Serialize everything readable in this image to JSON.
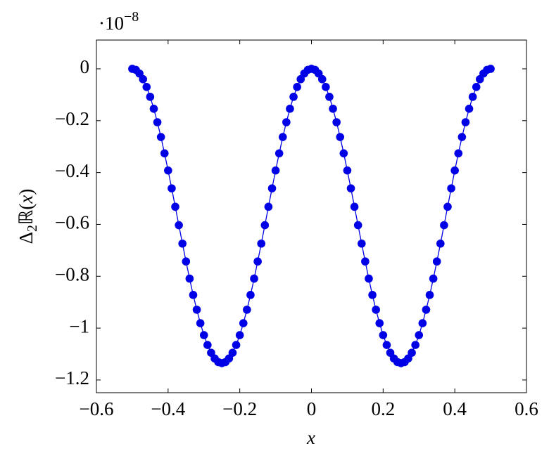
{
  "chart_data": {
    "type": "line",
    "y_multiplier": {
      "base": "·10",
      "exponent": "−8"
    },
    "xlabel": "x",
    "ylabel": [
      "Δ",
      "2",
      "ℝ(",
      "x",
      ")"
    ],
    "x": [
      -0.5,
      -0.49,
      -0.48,
      -0.47,
      -0.46,
      -0.45,
      -0.44,
      -0.43,
      -0.42,
      -0.41,
      -0.4,
      -0.39,
      -0.38,
      -0.37,
      -0.36,
      -0.35,
      -0.34,
      -0.33,
      -0.32,
      -0.31,
      -0.3,
      -0.29,
      -0.28,
      -0.27,
      -0.26,
      -0.25,
      -0.24,
      -0.23,
      -0.22,
      -0.21,
      -0.2,
      -0.19,
      -0.18,
      -0.17,
      -0.16,
      -0.15,
      -0.14,
      -0.13,
      -0.12,
      -0.11,
      -0.1,
      -0.09,
      -0.08,
      -0.07,
      -0.06,
      -0.05,
      -0.04,
      -0.03,
      -0.02,
      -0.01,
      0,
      0.01,
      0.02,
      0.03,
      0.04,
      0.05,
      0.06,
      0.07,
      0.08,
      0.09,
      0.1,
      0.11,
      0.12,
      0.13,
      0.14,
      0.15,
      0.16,
      0.17,
      0.18,
      0.19,
      0.2,
      0.21,
      0.22,
      0.23,
      0.24,
      0.25,
      0.26,
      0.27,
      0.28,
      0.29,
      0.3,
      0.31,
      0.32,
      0.33,
      0.34,
      0.35,
      0.36,
      0.37,
      0.38,
      0.39,
      0.4,
      0.41,
      0.42,
      0.43,
      0.44,
      0.45,
      0.46,
      0.47,
      0.48,
      0.49,
      0.5
    ],
    "series": [
      {
        "color": "#0000e6",
        "values": [
          0,
          -0.004,
          -0.018,
          -0.04,
          -0.07,
          -0.108,
          -0.154,
          -0.206,
          -0.263,
          -0.326,
          -0.392,
          -0.461,
          -0.532,
          -0.603,
          -0.674,
          -0.743,
          -0.809,
          -0.872,
          -0.929,
          -0.981,
          -1.027,
          -1.065,
          -1.095,
          -1.117,
          -1.131,
          -1.135,
          -1.131,
          -1.117,
          -1.095,
          -1.065,
          -1.027,
          -0.981,
          -0.929,
          -0.872,
          -0.809,
          -0.743,
          -0.674,
          -0.603,
          -0.532,
          -0.461,
          -0.392,
          -0.326,
          -0.263,
          -0.206,
          -0.154,
          -0.108,
          -0.07,
          -0.04,
          -0.018,
          -0.004,
          0,
          -0.004,
          -0.018,
          -0.04,
          -0.07,
          -0.108,
          -0.154,
          -0.206,
          -0.263,
          -0.326,
          -0.392,
          -0.461,
          -0.532,
          -0.603,
          -0.674,
          -0.743,
          -0.809,
          -0.872,
          -0.929,
          -0.981,
          -1.027,
          -1.065,
          -1.095,
          -1.117,
          -1.131,
          -1.135,
          -1.131,
          -1.117,
          -1.095,
          -1.065,
          -1.027,
          -0.981,
          -0.929,
          -0.872,
          -0.809,
          -0.743,
          -0.674,
          -0.603,
          -0.532,
          -0.461,
          -0.392,
          -0.326,
          -0.263,
          -0.206,
          -0.154,
          -0.108,
          -0.07,
          -0.04,
          -0.018,
          -0.004,
          0
        ]
      }
    ],
    "markers": true,
    "xlim": [
      -0.6,
      0.6
    ],
    "xticks": [
      {
        "value": -0.6,
        "label": "−0.6"
      },
      {
        "value": -0.4,
        "label": "−0.4"
      },
      {
        "value": -0.2,
        "label": "−0.2"
      },
      0,
      0.2,
      0.4,
      0.6
    ],
    "ylim": [
      -1.249,
      0.111
    ],
    "yticks": [
      0,
      {
        "value": -0.2,
        "label": "−0.2"
      },
      {
        "value": -0.4,
        "label": "−0.4"
      },
      {
        "value": -0.6,
        "label": "−0.6"
      },
      {
        "value": -0.8,
        "label": "−0.8"
      },
      {
        "value": -1,
        "label": "−1"
      },
      {
        "value": -1.2,
        "label": "−1.2"
      }
    ]
  }
}
